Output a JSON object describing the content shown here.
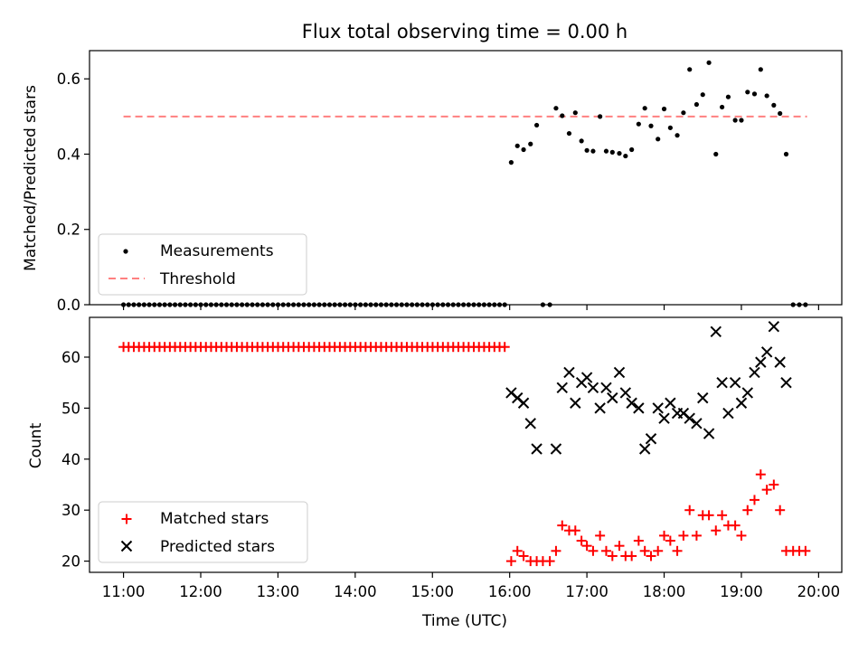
{
  "colors": {
    "measurement": "#000000",
    "threshold": "#ff8080",
    "matched": "#ff0000",
    "predicted": "#000000",
    "axis": "#000000",
    "legend_border": "#cccccc"
  },
  "chart_data": [
    {
      "type": "scatter",
      "title": "Flux total observing time = 0.00 h",
      "xlabel": "",
      "ylabel": "Matched/Predicted stars",
      "xlim": [
        10.56,
        20.3
      ],
      "ylim": [
        0.0,
        0.675
      ],
      "x_ticks": [
        11,
        12,
        13,
        14,
        15,
        16,
        17,
        18,
        19,
        20
      ],
      "x_ticklabels": [
        "11:00",
        "12:00",
        "13:00",
        "14:00",
        "15:00",
        "16:00",
        "17:00",
        "18:00",
        "19:00",
        "20:00"
      ],
      "y_ticks": [
        0.0,
        0.2,
        0.4,
        0.6
      ],
      "y_ticklabels": [
        "0.0",
        "0.2",
        "0.4",
        "0.6"
      ],
      "grid": false,
      "legend_position": "lower-left",
      "legend": [
        "Measurements",
        "Threshold"
      ],
      "series": [
        {
          "name": "Measurements",
          "kind": "points",
          "x_start": 11.0,
          "x_step": 0.0667,
          "zero_count": 75,
          "points": [
            [
              16.02,
              0.378
            ],
            [
              16.1,
              0.422
            ],
            [
              16.18,
              0.412
            ],
            [
              16.27,
              0.427
            ],
            [
              16.35,
              0.477
            ],
            [
              16.43,
              0.0
            ],
            [
              16.52,
              0.0
            ],
            [
              16.6,
              0.522
            ],
            [
              16.68,
              0.502
            ],
            [
              16.77,
              0.455
            ],
            [
              16.85,
              0.51
            ],
            [
              16.93,
              0.435
            ],
            [
              17.0,
              0.41
            ],
            [
              17.08,
              0.408
            ],
            [
              17.17,
              0.5
            ],
            [
              17.25,
              0.408
            ],
            [
              17.33,
              0.405
            ],
            [
              17.42,
              0.402
            ],
            [
              17.5,
              0.395
            ],
            [
              17.58,
              0.412
            ],
            [
              17.67,
              0.48
            ],
            [
              17.75,
              0.522
            ],
            [
              17.83,
              0.475
            ],
            [
              17.92,
              0.44
            ],
            [
              18.0,
              0.52
            ],
            [
              18.08,
              0.47
            ],
            [
              18.17,
              0.45
            ],
            [
              18.25,
              0.51
            ],
            [
              18.33,
              0.625
            ],
            [
              18.42,
              0.532
            ],
            [
              18.5,
              0.558
            ],
            [
              18.58,
              0.643
            ],
            [
              18.67,
              0.4
            ],
            [
              18.75,
              0.525
            ],
            [
              18.83,
              0.552
            ],
            [
              18.92,
              0.49
            ],
            [
              19.0,
              0.49
            ],
            [
              19.08,
              0.565
            ],
            [
              19.17,
              0.56
            ],
            [
              19.25,
              0.625
            ],
            [
              19.33,
              0.555
            ],
            [
              19.42,
              0.53
            ],
            [
              19.5,
              0.508
            ],
            [
              19.58,
              0.4
            ],
            [
              19.67,
              0.0
            ],
            [
              19.75,
              0.0
            ],
            [
              19.83,
              0.0
            ]
          ]
        },
        {
          "name": "Threshold",
          "kind": "line",
          "x": [
            11.0,
            19.85
          ],
          "y": [
            0.5,
            0.5
          ]
        }
      ]
    },
    {
      "type": "scatter",
      "title": "",
      "xlabel": "Time (UTC)",
      "ylabel": "Count",
      "xlim": [
        10.56,
        20.3
      ],
      "ylim": [
        17.8,
        67.8
      ],
      "x_ticks": [
        11,
        12,
        13,
        14,
        15,
        16,
        17,
        18,
        19,
        20
      ],
      "x_ticklabels": [
        "11:00",
        "12:00",
        "13:00",
        "14:00",
        "15:00",
        "16:00",
        "17:00",
        "18:00",
        "19:00",
        "20:00"
      ],
      "y_ticks": [
        20,
        30,
        40,
        50,
        60
      ],
      "y_ticklabels": [
        "20",
        "30",
        "40",
        "50",
        "60"
      ],
      "grid": false,
      "legend_position": "lower-left",
      "legend": [
        "Matched stars",
        "Predicted stars"
      ],
      "series": [
        {
          "name": "Matched stars",
          "marker": "plus",
          "x_start": 11.0,
          "x_step": 0.0667,
          "constant_count": 75,
          "constant_value": 62,
          "points": [
            [
              16.02,
              20
            ],
            [
              16.1,
              22
            ],
            [
              16.18,
              21
            ],
            [
              16.27,
              20
            ],
            [
              16.35,
              20
            ],
            [
              16.43,
              20
            ],
            [
              16.52,
              20
            ],
            [
              16.6,
              22
            ],
            [
              16.68,
              27
            ],
            [
              16.77,
              26
            ],
            [
              16.85,
              26
            ],
            [
              16.93,
              24
            ],
            [
              17.0,
              23
            ],
            [
              17.08,
              22
            ],
            [
              17.17,
              25
            ],
            [
              17.25,
              22
            ],
            [
              17.33,
              21
            ],
            [
              17.42,
              23
            ],
            [
              17.5,
              21
            ],
            [
              17.58,
              21
            ],
            [
              17.67,
              24
            ],
            [
              17.75,
              22
            ],
            [
              17.83,
              21
            ],
            [
              17.92,
              22
            ],
            [
              18.0,
              25
            ],
            [
              18.08,
              24
            ],
            [
              18.17,
              22
            ],
            [
              18.25,
              25
            ],
            [
              18.33,
              30
            ],
            [
              18.42,
              25
            ],
            [
              18.5,
              29
            ],
            [
              18.58,
              29
            ],
            [
              18.67,
              26
            ],
            [
              18.75,
              29
            ],
            [
              18.83,
              27
            ],
            [
              18.92,
              27
            ],
            [
              19.0,
              25
            ],
            [
              19.08,
              30
            ],
            [
              19.17,
              32
            ],
            [
              19.25,
              37
            ],
            [
              19.33,
              34
            ],
            [
              19.42,
              35
            ],
            [
              19.5,
              30
            ],
            [
              19.58,
              22
            ],
            [
              19.67,
              22
            ],
            [
              19.75,
              22
            ],
            [
              19.83,
              22
            ]
          ]
        },
        {
          "name": "Predicted stars",
          "marker": "x",
          "points": [
            [
              16.02,
              53
            ],
            [
              16.1,
              52
            ],
            [
              16.18,
              51
            ],
            [
              16.27,
              47
            ],
            [
              16.35,
              42
            ],
            [
              16.6,
              42
            ],
            [
              16.68,
              54
            ],
            [
              16.77,
              57
            ],
            [
              16.85,
              51
            ],
            [
              16.93,
              55
            ],
            [
              17.0,
              56
            ],
            [
              17.08,
              54
            ],
            [
              17.17,
              50
            ],
            [
              17.25,
              54
            ],
            [
              17.33,
              52
            ],
            [
              17.42,
              57
            ],
            [
              17.5,
              53
            ],
            [
              17.58,
              51
            ],
            [
              17.67,
              50
            ],
            [
              17.75,
              42
            ],
            [
              17.83,
              44
            ],
            [
              17.92,
              50
            ],
            [
              18.0,
              48
            ],
            [
              18.08,
              51
            ],
            [
              18.17,
              49
            ],
            [
              18.25,
              49
            ],
            [
              18.33,
              48
            ],
            [
              18.42,
              47
            ],
            [
              18.5,
              52
            ],
            [
              18.58,
              45
            ],
            [
              18.67,
              65
            ],
            [
              18.75,
              55
            ],
            [
              18.83,
              49
            ],
            [
              18.92,
              55
            ],
            [
              19.0,
              51
            ],
            [
              19.08,
              53
            ],
            [
              19.17,
              57
            ],
            [
              19.25,
              59
            ],
            [
              19.33,
              61
            ],
            [
              19.42,
              66
            ],
            [
              19.5,
              59
            ],
            [
              19.58,
              55
            ]
          ]
        }
      ]
    }
  ]
}
